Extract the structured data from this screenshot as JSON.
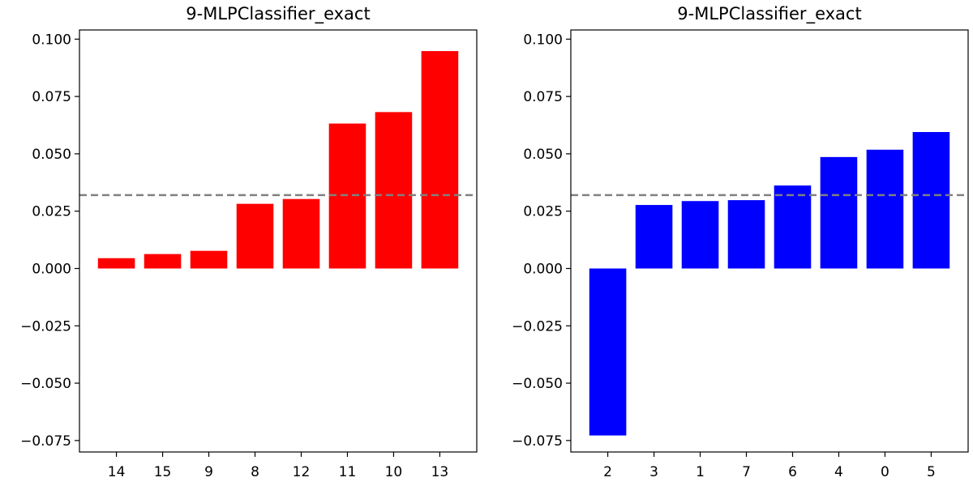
{
  "chart_data": [
    {
      "type": "bar",
      "title": "9-MLPClassifier_exact",
      "categories": [
        "14",
        "15",
        "9",
        "8",
        "12",
        "11",
        "10",
        "13"
      ],
      "values": [
        0.0045,
        0.0063,
        0.0077,
        0.0282,
        0.0303,
        0.0632,
        0.0682,
        0.0948
      ],
      "bar_color": "#ff0000",
      "reference_line": 0.032,
      "reference_color": "#808080",
      "ylim": [
        -0.08,
        0.104
      ],
      "yticks": [
        -0.075,
        -0.05,
        -0.025,
        0.0,
        0.025,
        0.05,
        0.075,
        0.1
      ],
      "ytick_labels": [
        "−0.075",
        "−0.050",
        "−0.025",
        "0.000",
        "0.025",
        "0.050",
        "0.075",
        "0.100"
      ],
      "xlabel": "",
      "ylabel": "",
      "grid": false
    },
    {
      "type": "bar",
      "title": "9-MLPClassifier_exact",
      "categories": [
        "2",
        "3",
        "1",
        "7",
        "6",
        "4",
        "0",
        "5"
      ],
      "values": [
        -0.0728,
        0.0277,
        0.0294,
        0.0298,
        0.0362,
        0.0486,
        0.0518,
        0.0595
      ],
      "bar_color": "#0000ff",
      "reference_line": 0.032,
      "reference_color": "#808080",
      "ylim": [
        -0.08,
        0.104
      ],
      "yticks": [
        -0.075,
        -0.05,
        -0.025,
        0.0,
        0.025,
        0.05,
        0.075,
        0.1
      ],
      "ytick_labels": [
        "−0.075",
        "−0.050",
        "−0.025",
        "0.000",
        "0.025",
        "0.050",
        "0.075",
        "0.100"
      ],
      "xlabel": "",
      "ylabel": "",
      "grid": false
    }
  ]
}
